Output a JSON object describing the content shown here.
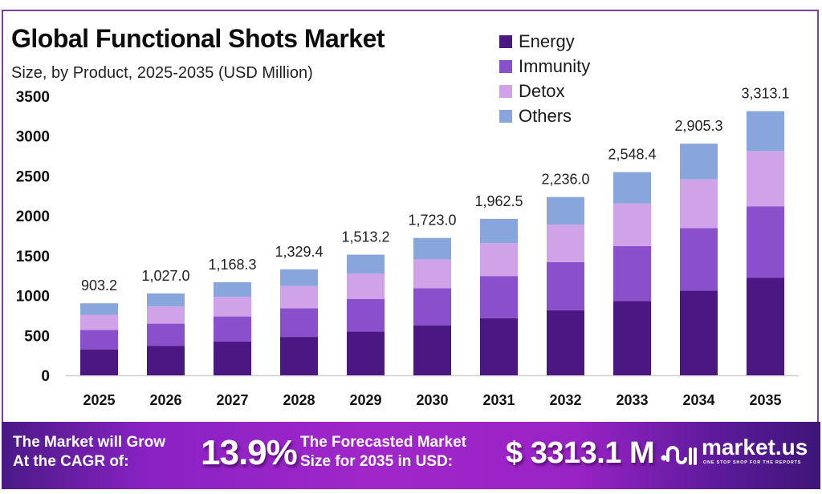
{
  "header": {
    "title": "Global Functional Shots Market",
    "subtitle": "Size, by Product, 2025-2035 (USD Million)"
  },
  "legend": [
    {
      "label": "Energy",
      "color": "#4b1783"
    },
    {
      "label": "Immunity",
      "color": "#8a4fcb"
    },
    {
      "label": "Detox",
      "color": "#d0a3e8"
    },
    {
      "label": "Others",
      "color": "#89a6dc"
    }
  ],
  "chart_data": {
    "type": "bar",
    "stacked": true,
    "title": "Global Functional Shots Market",
    "subtitle": "Size, by Product, 2025-2035 (USD Million)",
    "xlabel": "",
    "ylabel": "",
    "ylim": [
      0,
      3500
    ],
    "yticks": [
      0,
      500,
      1000,
      1500,
      2000,
      2500,
      3000,
      3500
    ],
    "grid": false,
    "legend_position": "top-right",
    "categories": [
      "2025",
      "2026",
      "2027",
      "2028",
      "2029",
      "2030",
      "2031",
      "2032",
      "2033",
      "2034",
      "2035"
    ],
    "totals": [
      903.2,
      1027.0,
      1168.3,
      1329.4,
      1513.2,
      1723.0,
      1962.5,
      2236.0,
      2548.4,
      2905.3,
      3313.1
    ],
    "total_labels": [
      "903.2",
      "1,027.0",
      "1,168.3",
      "1,329.4",
      "1,513.2",
      "1,723.0",
      "1,962.5",
      "2,236.0",
      "2,548.4",
      "2,905.3",
      "3,313.1"
    ],
    "series": [
      {
        "name": "Energy",
        "color": "#4b1783",
        "values": [
          325.2,
          370.7,
          422.8,
          482.0,
          549.8,
          627.1,
          715.3,
          816.1,
          931.2,
          1063.1,
          1222.5
        ]
      },
      {
        "name": "Immunity",
        "color": "#8a4fcb",
        "values": [
          243.9,
          277.3,
          315.4,
          358.9,
          408.6,
          465.2,
          529.9,
          603.7,
          688.1,
          784.4,
          894.5
        ]
      },
      {
        "name": "Detox",
        "color": "#d0a3e8",
        "values": [
          189.7,
          215.7,
          245.3,
          279.2,
          317.8,
          361.8,
          412.1,
          469.6,
          535.2,
          610.1,
          695.8
        ]
      },
      {
        "name": "Others",
        "color": "#89a6dc",
        "values": [
          144.4,
          163.3,
          184.8,
          209.3,
          237.0,
          268.9,
          305.2,
          346.6,
          393.9,
          447.7,
          500.3
        ]
      }
    ]
  },
  "banner": {
    "cagr_label_line1": "The Market will Grow",
    "cagr_label_line2": "At the CAGR of:",
    "cagr_value": "13.9%",
    "forecast_label_line1": "The Forecasted Market",
    "forecast_label_line2": "Size for 2035 in USD:",
    "forecast_value": "$ 3313.1 M",
    "brand_name": "market.us",
    "brand_tagline": "ONE STOP SHOP FOR THE REPORTS"
  }
}
